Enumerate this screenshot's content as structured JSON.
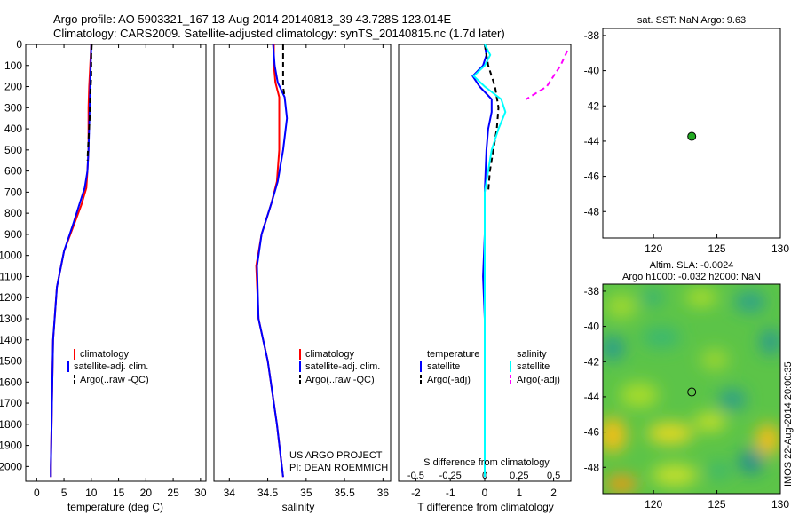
{
  "header": {
    "line1": "Argo profile: AO 5903321_167 13-Aug-2014 20140813_39 43.728S 123.014E",
    "line2": "Climatology: CARS2009. Satellite-adjusted climatology: synTS_20140815.nc (1.7d later)"
  },
  "colors": {
    "climatology": "#ff0000",
    "satellite": "#0000ff",
    "argo": "#000000",
    "sal_satellite": "#00ffff",
    "sal_argo": "#ff00ff",
    "marker": "#22aa22"
  },
  "credit": [
    "US ARGO PROJECT",
    "PI: DEAN ROEMMICH"
  ],
  "watermark": "IMOS 22-Aug-2014 20:00:35",
  "chart_data": [
    {
      "id": "temperature",
      "type": "line",
      "xlabel": "temperature (deg C)",
      "xlim": [
        -2,
        31
      ],
      "ylim": [
        0,
        2070
      ],
      "xticks": [
        "0",
        "5",
        "10",
        "15",
        "20",
        "25",
        "30"
      ],
      "yticks": [
        "0",
        "100",
        "200",
        "300",
        "400",
        "500",
        "600",
        "700",
        "800",
        "900",
        "1000",
        "1100",
        "1200",
        "1300",
        "1400",
        "1500",
        "1600",
        "1700",
        "1800",
        "1900",
        "2000"
      ],
      "legend": [
        "climatology",
        "satellite-adj. clim.",
        "Argo(..raw -QC)"
      ],
      "series": [
        {
          "name": "climatology",
          "color": "#ff0000",
          "dash": "none",
          "x": [
            10.0,
            9.8,
            9.6,
            9.5,
            9.5,
            9.5,
            9.3,
            9.1,
            8.2,
            6.9,
            5.0,
            3.7,
            3.0,
            2.8,
            2.6,
            2.6
          ],
          "y": [
            0,
            100,
            200,
            300,
            400,
            500,
            600,
            680,
            760,
            850,
            980,
            1150,
            1400,
            1700,
            2000,
            2050
          ]
        },
        {
          "name": "satellite-adj. clim.",
          "color": "#0000ff",
          "dash": "none",
          "x": [
            10.0,
            9.9,
            9.8,
            9.7,
            9.6,
            9.5,
            9.3,
            8.8,
            7.8,
            6.7,
            5.0,
            3.7,
            3.0,
            2.8,
            2.6,
            2.6
          ],
          "y": [
            0,
            100,
            200,
            300,
            400,
            500,
            600,
            680,
            760,
            850,
            980,
            1150,
            1400,
            1700,
            2000,
            2050
          ]
        },
        {
          "name": "Argo(..raw -QC)",
          "color": "#000000",
          "dash": "6,4",
          "x": [
            10.1,
            10.0,
            10.0,
            9.8,
            9.7,
            9.5,
            9.3
          ],
          "y": [
            0,
            50,
            150,
            250,
            350,
            450,
            550
          ]
        }
      ]
    },
    {
      "id": "salinity",
      "type": "line",
      "xlabel": "salinity",
      "xlim": [
        33.8,
        36.1
      ],
      "ylim": [
        0,
        2070
      ],
      "xticks": [
        "34",
        "34.5",
        "35",
        "35.5",
        "36"
      ],
      "legend": [
        "climatology",
        "satellite-adj. clim.",
        "Argo(..raw -QC)"
      ],
      "series": [
        {
          "name": "climatology",
          "color": "#ff0000",
          "dash": "none",
          "x": [
            34.58,
            34.58,
            34.6,
            34.65,
            34.65,
            34.65,
            34.62,
            34.55,
            34.42,
            34.35,
            34.38,
            34.5,
            34.62,
            34.7
          ],
          "y": [
            0,
            100,
            180,
            250,
            350,
            500,
            650,
            750,
            900,
            1050,
            1300,
            1500,
            1800,
            2050
          ]
        },
        {
          "name": "satellite-adj. clim.",
          "color": "#0000ff",
          "dash": "none",
          "x": [
            34.57,
            34.59,
            34.63,
            34.72,
            34.75,
            34.7,
            34.63,
            34.55,
            34.42,
            34.36,
            34.38,
            34.5,
            34.62,
            34.7
          ],
          "y": [
            0,
            100,
            180,
            250,
            350,
            500,
            650,
            750,
            900,
            1050,
            1300,
            1500,
            1800,
            2050
          ]
        },
        {
          "name": "Argo(..raw -QC)",
          "color": "#000000",
          "dash": "6,4",
          "x": [
            34.7,
            34.7,
            34.7,
            34.72
          ],
          "y": [
            0,
            100,
            200,
            250
          ]
        }
      ]
    },
    {
      "id": "differences",
      "type": "line",
      "xlabel": "T difference from climatology",
      "xlabel2": "S difference from climatology",
      "xlim": [
        -2.5,
        2.5
      ],
      "ylim": [
        0,
        2070
      ],
      "xticks": [
        "-2",
        "-1",
        "0",
        "1",
        "2"
      ],
      "xticks2": [
        "-0.5",
        "-0.25",
        "0",
        "0.25",
        "0.5"
      ],
      "legend_titles": [
        "temperature",
        "salinity"
      ],
      "legend_t": [
        "satellite",
        "Argo(-adj)"
      ],
      "legend_s": [
        "satellite",
        "Argo(-adj)"
      ],
      "series": [
        {
          "name": "T satellite",
          "color": "#0000ff",
          "dash": "none",
          "x": [
            0,
            0.05,
            -0.05,
            -0.35,
            -0.15,
            0.2,
            0.2,
            0.1,
            0.05,
            0,
            0,
            -0.05,
            0,
            0,
            0
          ],
          "y": [
            0,
            50,
            100,
            150,
            200,
            260,
            320,
            400,
            500,
            700,
            900,
            1100,
            1300,
            1700,
            2050
          ]
        },
        {
          "name": "T Argo(-adj)",
          "color": "#000000",
          "dash": "6,4",
          "x": [
            0,
            0.1,
            0.3,
            0.4,
            0.35,
            0.25,
            0.15,
            0.1
          ],
          "y": [
            0,
            100,
            200,
            300,
            400,
            500,
            600,
            700
          ]
        },
        {
          "name": "S satellite",
          "color": "#00ffff",
          "dash": "none",
          "x": [
            0,
            0.04,
            0,
            -0.08,
            0,
            0.12,
            0.15,
            0.1,
            0.05,
            0,
            0,
            0,
            0,
            0
          ],
          "y": [
            0,
            50,
            100,
            150,
            200,
            260,
            320,
            400,
            500,
            700,
            1000,
            1300,
            1700,
            2050
          ]
        },
        {
          "name": "S Argo(-adj)",
          "color": "#ff00ff",
          "dash": "6,4",
          "x": [
            0.6,
            0.55,
            0.45,
            0.3
          ],
          "y": [
            30,
            100,
            200,
            260
          ]
        }
      ]
    },
    {
      "id": "sst_map",
      "type": "scatter",
      "title": "sat. SST: NaN Argo: 9.63",
      "xlim": [
        116,
        130
      ],
      "ylim": [
        -49.5,
        -37.6
      ],
      "xticks": [
        "120",
        "125",
        "130"
      ],
      "yticks": [
        "-38",
        "-40",
        "-42",
        "-44",
        "-46",
        "-48"
      ],
      "points": [
        {
          "x": 123.014,
          "y": -43.728
        }
      ]
    },
    {
      "id": "sla_map",
      "type": "heatmap",
      "title1": "Altim. SLA: -0.0024",
      "title2": "Argo h1000: -0.032 h2000: NaN",
      "xlim": [
        116,
        130
      ],
      "ylim": [
        -49.5,
        -37.6
      ],
      "xticks": [
        "120",
        "125",
        "130"
      ],
      "yticks": [
        "-38",
        "-40",
        "-42",
        "-44",
        "-46",
        "-48"
      ],
      "points": [
        {
          "x": 123.014,
          "y": -43.728
        }
      ]
    }
  ]
}
